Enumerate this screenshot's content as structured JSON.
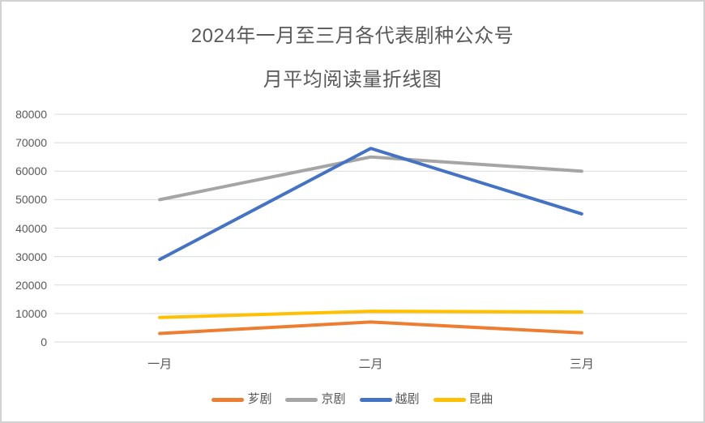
{
  "window": {
    "background_color": "#ffffff",
    "frame_border_color": "#d2d2d2"
  },
  "chart_data": {
    "type": "line",
    "title": "2024年一月至三月各代表剧种公众号",
    "subtitle": "月平均阅读量折线图",
    "categories": [
      "一月",
      "二月",
      "三月"
    ],
    "series": [
      {
        "name": "芗剧",
        "color": "#ED7D31",
        "values": [
          3000,
          7000,
          3200
        ]
      },
      {
        "name": "京剧",
        "color": "#A5A5A5",
        "values": [
          50000,
          65000,
          60000
        ]
      },
      {
        "name": "越剧",
        "color": "#4472C4",
        "values": [
          29000,
          68000,
          45000
        ]
      },
      {
        "name": "昆曲",
        "color": "#FFC000",
        "values": [
          8600,
          10800,
          10500
        ]
      }
    ],
    "xlabel": "",
    "ylabel": "",
    "ylim": [
      0,
      80000
    ],
    "ytick_step": 10000,
    "ytick_labels": [
      "0",
      "10000",
      "20000",
      "30000",
      "40000",
      "50000",
      "60000",
      "70000",
      "80000"
    ],
    "grid": true,
    "gridline_color": "#d9d9d9",
    "text_color": "#595959",
    "legend_position": "bottom",
    "line_width": 4
  }
}
